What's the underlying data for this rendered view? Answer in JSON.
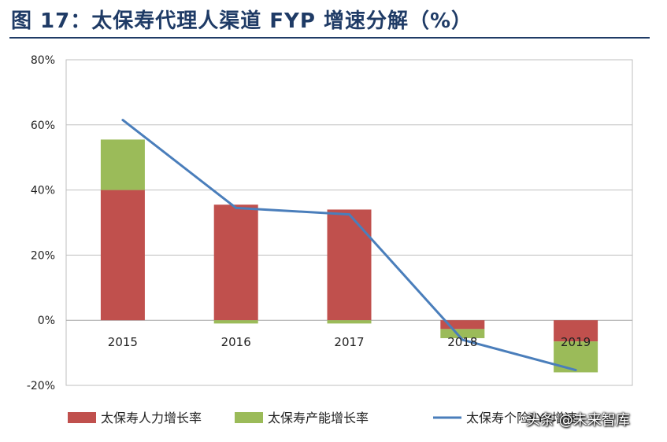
{
  "title": "图 17：太保寿代理人渠道 FYP 增速分解（%）",
  "watermark": "头条 @未来智库",
  "colors": {
    "red": "#C0504D",
    "green": "#9BBB59",
    "blue": "#4A7EBB",
    "title": "#1F3B66"
  },
  "chart_data": {
    "type": "bar",
    "stacked": true,
    "categories": [
      "2015",
      "2016",
      "2017",
      "2018",
      "2019"
    ],
    "series": [
      {
        "name": "太保寿人力增长率",
        "type": "bar",
        "color": "#C0504D",
        "values": [
          40,
          35.5,
          34,
          -2.7,
          -6.5
        ]
      },
      {
        "name": "太保寿产能增长率",
        "type": "bar",
        "color": "#9BBB59",
        "values": [
          15.5,
          -1,
          -1,
          -2.8,
          -9.5
        ]
      },
      {
        "name": "太保寿个险FYP增速",
        "type": "line",
        "color": "#4A7EBB",
        "values": [
          61.5,
          34.5,
          32.5,
          -6,
          -15.3
        ]
      }
    ],
    "ylim": [
      -20,
      80
    ],
    "yticks": [
      "-20%",
      "0%",
      "20%",
      "40%",
      "60%",
      "80%"
    ],
    "grid": true,
    "legend": "bottom"
  }
}
